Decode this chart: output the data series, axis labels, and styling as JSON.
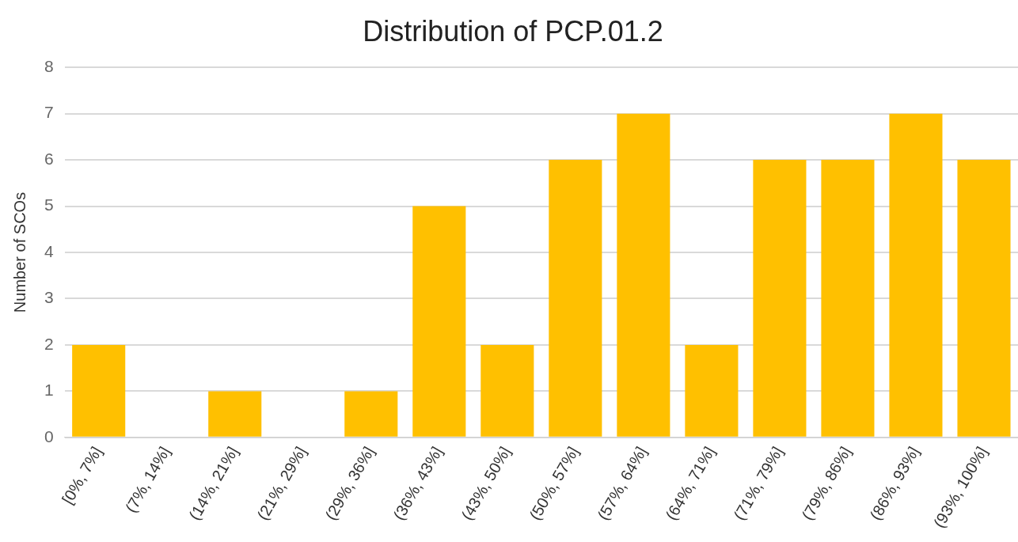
{
  "chart_data": {
    "type": "bar",
    "title": "Distribution of PCP.01.2",
    "ylabel": "Number of SCOs",
    "categories": [
      "[0%, 7%]",
      "(7%, 14%]",
      "(14%, 21%]",
      "(21%, 29%]",
      "(29%, 36%]",
      "(36%, 43%]",
      "(43%, 50%]",
      "(50%, 57%]",
      "(57%, 64%]",
      "(64%, 71%]",
      "(71%, 79%]",
      "(79%, 86%]",
      "(86%, 93%]",
      "(93%, 100%]"
    ],
    "values": [
      2,
      0,
      1,
      0,
      1,
      5,
      2,
      6,
      7,
      2,
      6,
      6,
      7,
      6
    ],
    "color": "#ffc000",
    "ylim": [
      0,
      8
    ],
    "yticks": [
      0,
      1,
      2,
      3,
      4,
      5,
      6,
      7,
      8
    ],
    "grid": "y",
    "legend": false
  }
}
